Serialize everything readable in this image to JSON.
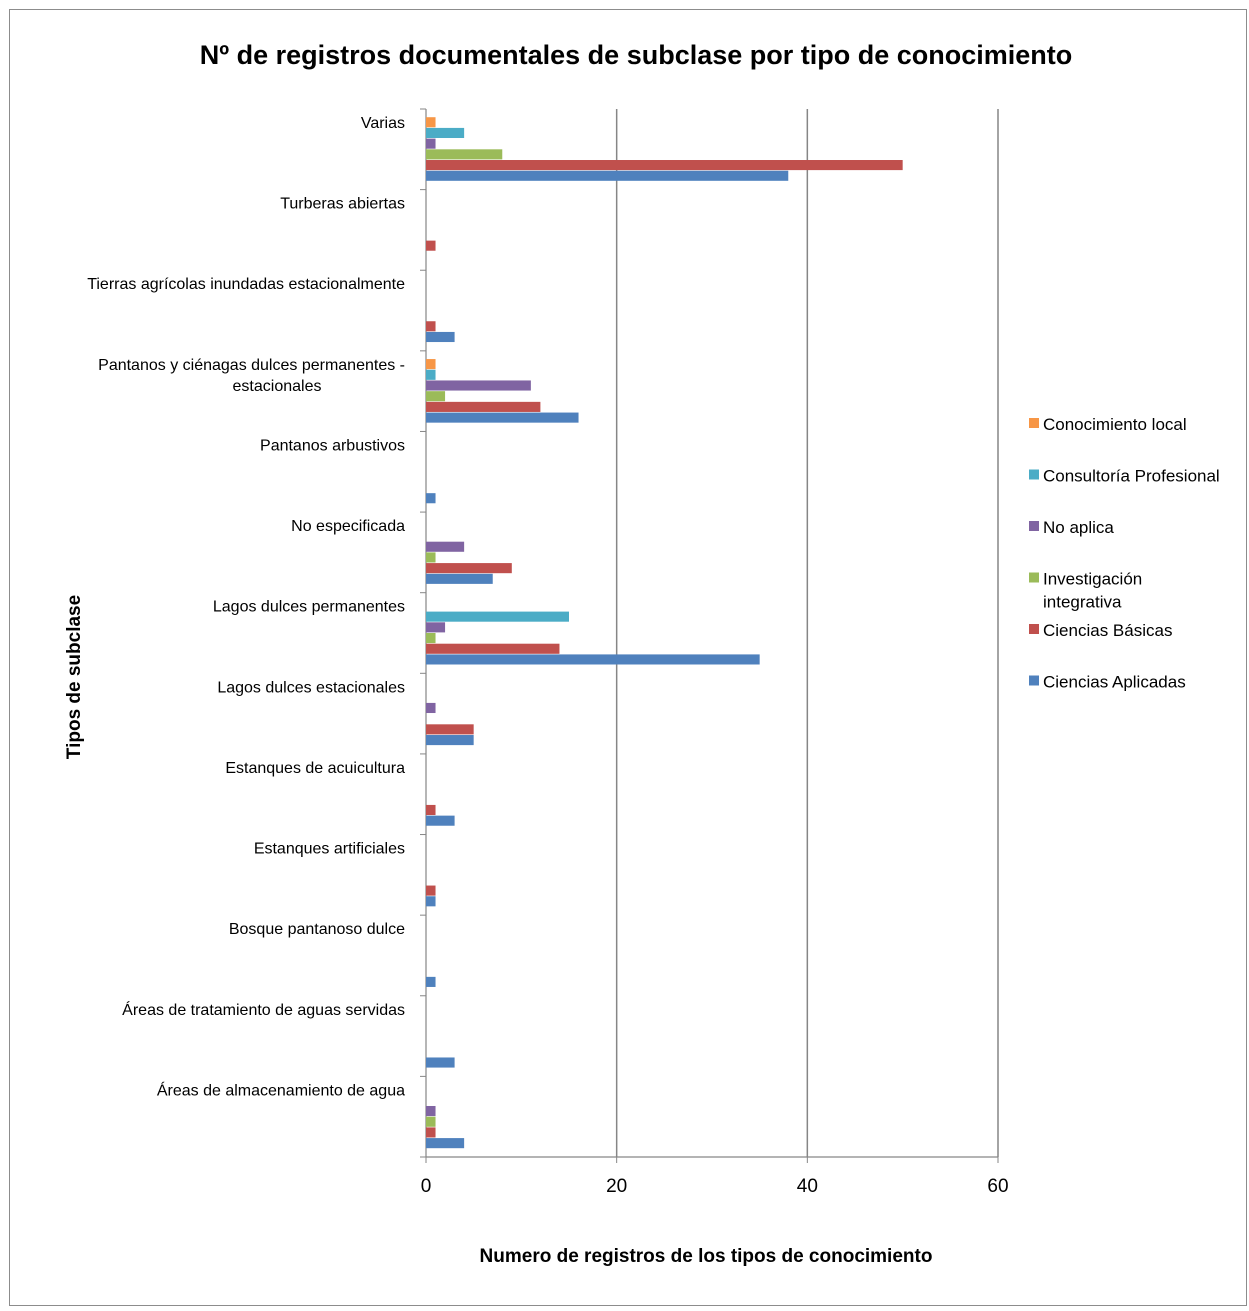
{
  "chart_data": {
    "type": "bar",
    "orientation": "horizontal",
    "title": "Nº de registros documentales  de subclase por tipo de conocimiento",
    "xlabel": "Numero de registros de los tipos de conocimiento",
    "ylabel": "Tipos de subclase",
    "xlim": [
      0,
      60
    ],
    "xticks": [
      "0",
      "20",
      "40",
      "60"
    ],
    "grid": "vertical",
    "legend_position": "right",
    "categories": [
      "Áreas de almacenamiento de agua",
      "Áreas de tratamiento de aguas servidas",
      "Bosque pantanoso dulce",
      "Estanques artificiales",
      "Estanques de acuicultura",
      "Lagos dulces estacionales",
      "Lagos dulces permanentes",
      "No especificada",
      "Pantanos arbustivos",
      "Pantanos y ciénagas dulces permanentes - estacionales",
      "Tierras agrícolas inundadas estacionalmente",
      "Turberas abiertas",
      "Varias"
    ],
    "category_lines": {
      "Pantanos y ciénagas dulces permanentes - estacionales": [
        "Pantanos y ciénagas dulces permanentes -",
        "estacionales"
      ]
    },
    "series": [
      {
        "name": "Ciencias Aplicadas",
        "color": "#4F81BD",
        "values": [
          4,
          3,
          1,
          1,
          3,
          5,
          35,
          7,
          1,
          16,
          3,
          0,
          38
        ]
      },
      {
        "name": "Ciencias Básicas",
        "color": "#C0504D",
        "values": [
          1,
          0,
          0,
          1,
          1,
          5,
          14,
          9,
          0,
          12,
          1,
          1,
          50
        ]
      },
      {
        "name": "Investigación integrativa",
        "color": "#9BBB59",
        "values": [
          1,
          0,
          0,
          0,
          0,
          0,
          1,
          1,
          0,
          2,
          0,
          0,
          8
        ]
      },
      {
        "name": "No aplica",
        "color": "#8064A2",
        "values": [
          1,
          0,
          0,
          0,
          0,
          1,
          2,
          4,
          0,
          11,
          0,
          0,
          1
        ]
      },
      {
        "name": "Consultoría Profesional",
        "color": "#4BACC6",
        "values": [
          0,
          0,
          0,
          0,
          0,
          0,
          15,
          0,
          0,
          1,
          0,
          0,
          4
        ]
      },
      {
        "name": "Conocimiento local",
        "color": "#F79646",
        "values": [
          0,
          0,
          0,
          0,
          0,
          0,
          0,
          0,
          0,
          1,
          0,
          0,
          1
        ]
      }
    ],
    "legend": [
      {
        "name": "Conocimiento local",
        "lines": [
          "Conocimiento local"
        ]
      },
      {
        "name": "Consultoría Profesional",
        "lines": [
          "Consultoría Profesional"
        ]
      },
      {
        "name": "No aplica",
        "lines": [
          "No aplica"
        ]
      },
      {
        "name": "Investigación integrativa",
        "lines": [
          "Investigación",
          "integrativa"
        ]
      },
      {
        "name": "Ciencias Básicas",
        "lines": [
          "Ciencias Básicas"
        ]
      },
      {
        "name": "Ciencias Aplicadas",
        "lines": [
          "Ciencias Aplicadas"
        ]
      }
    ]
  }
}
